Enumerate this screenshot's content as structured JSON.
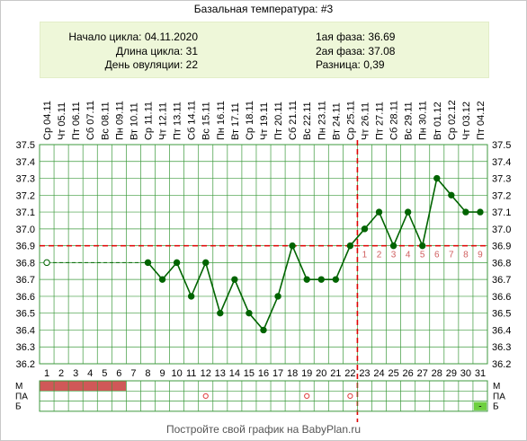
{
  "title": "Базальная температура: #3",
  "info": {
    "cycle_start": "Начало цикла: 04.11.2020",
    "cycle_length": "Длина цикла: 31",
    "ovulation_day": "День овуляции: 22",
    "phase1": "1ая фаза: 36.69",
    "phase2": "2ая фаза: 37.08",
    "difference": "Разница: 0,39"
  },
  "footer": "Постройте свой график на BabyPlan.ru",
  "colors": {
    "line": "#006400",
    "grid": "#3c9a3c",
    "guide": "#e00000",
    "menstruation": "#d05858",
    "marker_fill": "#6ed040",
    "post_ov_label": "#d06060"
  },
  "chart_data": {
    "type": "line",
    "title": "Базальная температура: #3",
    "ylim": [
      36.2,
      37.5
    ],
    "y_ticks": [
      "36.2",
      "36.3",
      "36.4",
      "36.5",
      "36.6",
      "36.7",
      "36.8",
      "36.9",
      "37.0",
      "37.1",
      "37.2",
      "37.3",
      "37.4",
      "37.5"
    ],
    "day_numbers": [
      "1",
      "2",
      "3",
      "4",
      "5",
      "6",
      "7",
      "8",
      "9",
      "10",
      "11",
      "12",
      "13",
      "14",
      "15",
      "16",
      "17",
      "18",
      "19",
      "20",
      "21",
      "22",
      "23",
      "24",
      "25",
      "26",
      "27",
      "28",
      "29",
      "30",
      "31"
    ],
    "dates": [
      "Ср 04.11",
      "Чт 05.11",
      "Пт 06.11",
      "Сб 07.11",
      "Вс 08.11",
      "Пн 09.11",
      "Вт 10.11",
      "Ср 11.11",
      "Чт 12.11",
      "Пт 13.11",
      "Сб 14.11",
      "Вс 15.11",
      "Пн 16.11",
      "Вт 17.11",
      "Ср 18.11",
      "Чт 19.11",
      "Пт 20.11",
      "Сб 21.11",
      "Вс 22.11",
      "Пн 23.11",
      "Вт 24.11",
      "Ср 25.11",
      "Чт 26.11",
      "Пт 27.11",
      "Сб 28.11",
      "Вс 29.11",
      "Пн 30.11",
      "Вт 01.12",
      "Ср 02.12",
      "Чт 03.12",
      "Пт 04.12"
    ],
    "temperatures": [
      36.8,
      null,
      null,
      null,
      null,
      null,
      null,
      36.8,
      36.7,
      36.8,
      36.6,
      36.8,
      36.5,
      36.7,
      36.5,
      36.4,
      36.6,
      36.9,
      36.7,
      36.7,
      36.7,
      36.9,
      37.0,
      37.1,
      36.9,
      37.1,
      36.9,
      37.3,
      37.2,
      37.1,
      37.1
    ],
    "dashed_segment": [
      1,
      8
    ],
    "coverline": 36.9,
    "ovulation_day": 22,
    "post_ovulation_labels": [
      "1",
      "2",
      "3",
      "4",
      "5",
      "6",
      "7",
      "8",
      "9"
    ],
    "bottom_rows": {
      "labels": [
        "М",
        "ПА",
        "Б"
      ],
      "menstruation_days": [
        1,
        2,
        3,
        4,
        5,
        6
      ],
      "intercourse_days": [
        12,
        19,
        22
      ],
      "marker_days": [
        31
      ],
      "marker_text": "-"
    }
  }
}
